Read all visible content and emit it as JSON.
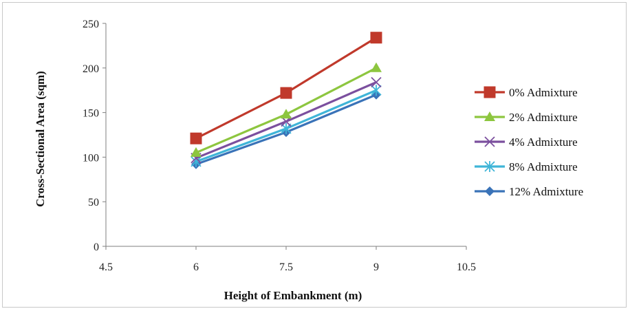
{
  "chart_data": {
    "type": "line",
    "title": "",
    "xlabel": "Height of Embankment (m)",
    "ylabel": "Cross-Sectional Area (sqm)",
    "xlim": [
      4.5,
      10.5
    ],
    "ylim": [
      0,
      250
    ],
    "x_ticks": [
      "4.5",
      "6",
      "7.5",
      "9",
      "10.5"
    ],
    "y_ticks": [
      "0",
      "50",
      "100",
      "150",
      "200",
      "250"
    ],
    "x": [
      6,
      7.5,
      9
    ],
    "grid": false,
    "legend_position": "right",
    "series": [
      {
        "name": "0% Admixture",
        "values": [
          121,
          172,
          234
        ],
        "color": "#c0392b",
        "marker": "square"
      },
      {
        "name": "2% Admixture",
        "values": [
          105,
          148,
          200
        ],
        "color": "#8dc63f",
        "marker": "triangle"
      },
      {
        "name": "4% Admixture",
        "values": [
          99,
          140,
          184
        ],
        "color": "#7b4f9e",
        "marker": "x"
      },
      {
        "name": "8% Admixture",
        "values": [
          95,
          132,
          175
        ],
        "color": "#3fb5d8",
        "marker": "star"
      },
      {
        "name": "12% Admixture",
        "values": [
          92,
          128,
          170
        ],
        "color": "#3a73b8",
        "marker": "diamond"
      }
    ]
  }
}
